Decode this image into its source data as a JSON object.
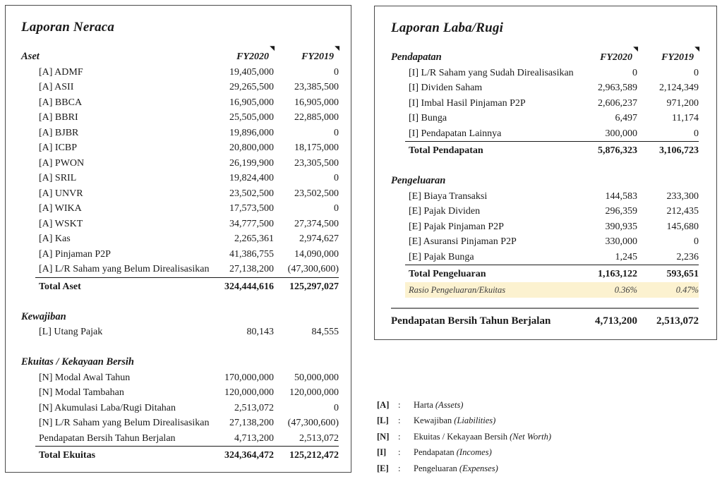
{
  "icons": {
    "corner_marker": "◥"
  },
  "colors": {
    "panel_border": "#4a4a4a",
    "text": "#1a1a1a",
    "highlight_bg": "#fcf2d0",
    "grand_border": "#808080"
  },
  "neraca": {
    "title": "Laporan Neraca",
    "columns": [
      "FY2020",
      "FY2019"
    ],
    "sections": [
      {
        "name": "Aset",
        "show_columns": true,
        "rows": [
          {
            "label": "[A] ADMF",
            "fy2020": "19,405,000",
            "fy2019": "0"
          },
          {
            "label": "[A] ASII",
            "fy2020": "29,265,500",
            "fy2019": "23,385,500"
          },
          {
            "label": "[A] BBCA",
            "fy2020": "16,905,000",
            "fy2019": "16,905,000"
          },
          {
            "label": "[A] BBRI",
            "fy2020": "25,505,000",
            "fy2019": "22,885,000"
          },
          {
            "label": "[A] BJBR",
            "fy2020": "19,896,000",
            "fy2019": "0"
          },
          {
            "label": "[A] ICBP",
            "fy2020": "20,800,000",
            "fy2019": "18,175,000"
          },
          {
            "label": "[A] PWON",
            "fy2020": "26,199,900",
            "fy2019": "23,305,500"
          },
          {
            "label": "[A] SRIL",
            "fy2020": "19,824,400",
            "fy2019": "0"
          },
          {
            "label": "[A] UNVR",
            "fy2020": "23,502,500",
            "fy2019": "23,502,500"
          },
          {
            "label": "[A] WIKA",
            "fy2020": "17,573,500",
            "fy2019": "0"
          },
          {
            "label": "[A] WSKT",
            "fy2020": "34,777,500",
            "fy2019": "27,374,500"
          },
          {
            "label": "[A] Kas",
            "fy2020": "2,265,361",
            "fy2019": "2,974,627"
          },
          {
            "label": "[A] Pinjaman P2P",
            "fy2020": "41,386,755",
            "fy2019": "14,090,000"
          },
          {
            "label": "[A] L/R Saham yang Belum Direalisasikan",
            "fy2020": "27,138,200",
            "fy2019": "(47,300,600)"
          }
        ],
        "total": {
          "label": "Total Aset",
          "fy2020": "324,444,616",
          "fy2019": "125,297,027"
        }
      },
      {
        "name": "Kewajiban",
        "rows": [
          {
            "label": "[L] Utang Pajak",
            "fy2020": "80,143",
            "fy2019": "84,555"
          }
        ]
      },
      {
        "name": "Ekuitas / Kekayaan Bersih",
        "rows": [
          {
            "label": "[N] Modal Awal Tahun",
            "fy2020": "170,000,000",
            "fy2019": "50,000,000"
          },
          {
            "label": "[N] Modal Tambahan",
            "fy2020": "120,000,000",
            "fy2019": "120,000,000"
          },
          {
            "label": "[N] Akumulasi Laba/Rugi Ditahan",
            "fy2020": "2,513,072",
            "fy2019": "0"
          },
          {
            "label": "[N] L/R Saham yang Belum Direalisasikan",
            "fy2020": "27,138,200",
            "fy2019": "(47,300,600)"
          },
          {
            "label": "Pendapatan Bersih Tahun Berjalan",
            "fy2020": "4,713,200",
            "fy2019": "2,513,072"
          }
        ],
        "total": {
          "label": "Total Ekuitas",
          "fy2020": "324,364,472",
          "fy2019": "125,212,472"
        }
      }
    ]
  },
  "laba_rugi": {
    "title": "Laporan Laba/Rugi",
    "columns": [
      "FY2020",
      "FY2019"
    ],
    "sections": [
      {
        "name": "Pendapatan",
        "show_columns": true,
        "rows": [
          {
            "label": "[I] L/R Saham yang Sudah Direalisasikan",
            "fy2020": "0",
            "fy2019": "0"
          },
          {
            "label": "[I] Dividen Saham",
            "fy2020": "2,963,589",
            "fy2019": "2,124,349"
          },
          {
            "label": "[I] Imbal Hasil Pinjaman P2P",
            "fy2020": "2,606,237",
            "fy2019": "971,200"
          },
          {
            "label": "[I] Bunga",
            "fy2020": "6,497",
            "fy2019": "11,174"
          },
          {
            "label": "[I] Pendapatan Lainnya",
            "fy2020": "300,000",
            "fy2019": "0"
          }
        ],
        "total": {
          "label": "Total Pendapatan",
          "fy2020": "5,876,323",
          "fy2019": "3,106,723"
        }
      },
      {
        "name": "Pengeluaran",
        "rows": [
          {
            "label": "[E] Biaya Transaksi",
            "fy2020": "144,583",
            "fy2019": "233,300"
          },
          {
            "label": "[E] Pajak Dividen",
            "fy2020": "296,359",
            "fy2019": "212,435"
          },
          {
            "label": "[E] Pajak Pinjaman P2P",
            "fy2020": "390,935",
            "fy2019": "145,680"
          },
          {
            "label": "[E] Asuransi Pinjaman P2P",
            "fy2020": "330,000",
            "fy2019": "0"
          },
          {
            "label": "[E] Pajak Bunga",
            "fy2020": "1,245",
            "fy2019": "2,236"
          }
        ],
        "total": {
          "label": "Total Pengeluaran",
          "fy2020": "1,163,122",
          "fy2019": "593,651"
        },
        "highlight": {
          "label": "Rasio Pengeluaran/Ekuitas",
          "fy2020": "0.36%",
          "fy2019": "0.47%"
        }
      }
    ],
    "grand_total": {
      "label": "Pendapatan Bersih Tahun Berjalan",
      "fy2020": "4,713,200",
      "fy2019": "2,513,072"
    }
  },
  "legend": {
    "separator": ":",
    "items": [
      {
        "code": "[A]",
        "label": "Harta",
        "en": "(Assets)"
      },
      {
        "code": "[L]",
        "label": "Kewajiban",
        "en": "(Liabilities)"
      },
      {
        "code": "[N]",
        "label": "Ekuitas / Kekayaan Bersih",
        "en": "(Net Worth)"
      },
      {
        "code": "[I]",
        "label": "Pendapatan",
        "en": "(Incomes)"
      },
      {
        "code": "[E]",
        "label": "Pengeluaran",
        "en": "(Expenses)"
      }
    ]
  }
}
